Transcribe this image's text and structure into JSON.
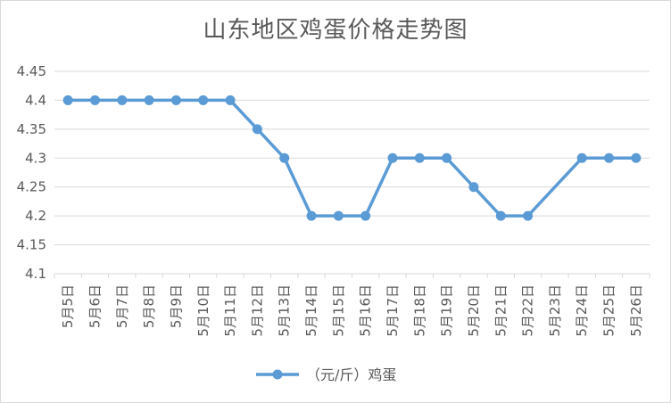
{
  "chart_data": {
    "type": "line",
    "title": "山东地区鸡蛋价格走势图",
    "xlabel": "",
    "ylabel": "",
    "categories": [
      "5月5日",
      "5月6日",
      "5月7日",
      "5月8日",
      "5月9日",
      "5月10日",
      "5月11日",
      "5月12日",
      "5月13日",
      "5月14日",
      "5月15日",
      "5月16日",
      "5月17日",
      "5月18日",
      "5月19日",
      "5月20日",
      "5月21日",
      "5月22日",
      "5月23日",
      "5月24日",
      "5月25日",
      "5月26日"
    ],
    "series": [
      {
        "name": "（元/斤）鸡蛋",
        "values": [
          4.4,
          4.4,
          4.4,
          4.4,
          4.4,
          4.4,
          4.4,
          4.35,
          4.3,
          4.2,
          4.2,
          4.2,
          4.3,
          4.3,
          4.3,
          4.25,
          4.2,
          4.2,
          null,
          4.3,
          4.3,
          4.3
        ],
        "color": "#5b9bd5"
      }
    ],
    "ylim": [
      4.1,
      4.45
    ],
    "yticks": [
      "4.1",
      "4.15",
      "4.2",
      "4.25",
      "4.3",
      "4.35",
      "4.4",
      "4.45"
    ],
    "grid": true,
    "legend": "bottom",
    "gaps": "connect"
  },
  "colors": {
    "line": "#5b9bd5",
    "grid": "#d9d9d9",
    "text": "#595959"
  }
}
